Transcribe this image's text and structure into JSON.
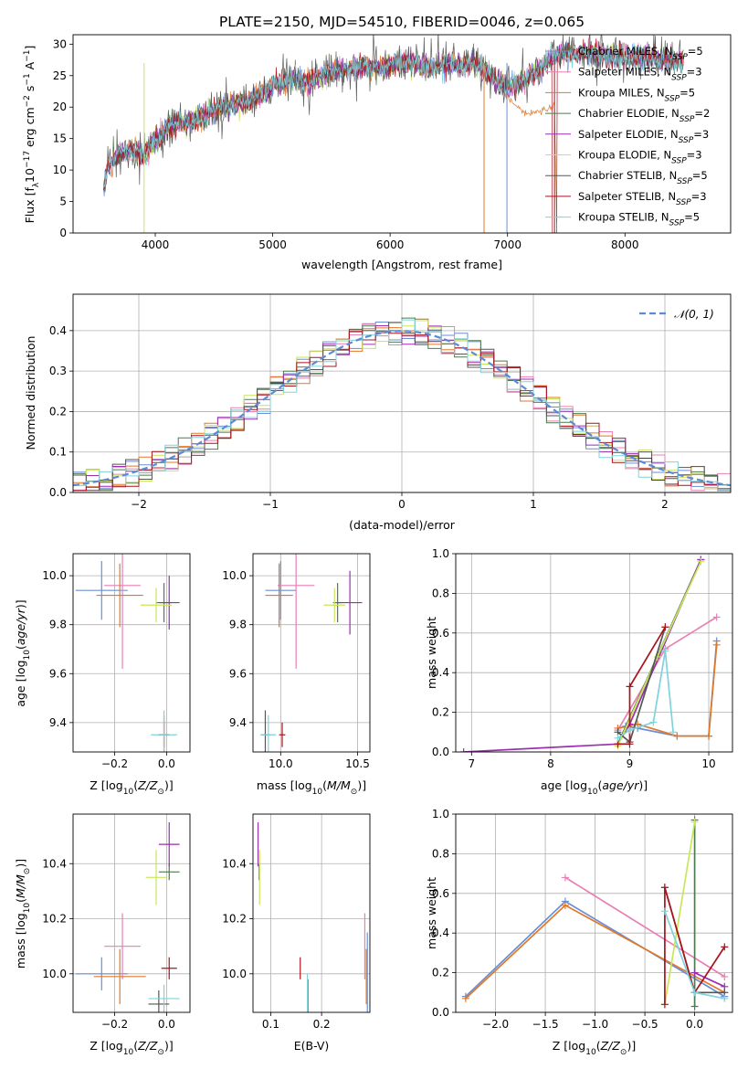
{
  "title": "PLATE=2150, MJD=54510, FIBERID=0046, z=0.065",
  "colors": {
    "chabrier_miles": "#6a8fd6",
    "salpeter_miles": "#e97fb3",
    "kroupa_miles": "#e0782a",
    "chabrier_elodie": "#4d7a4f",
    "salpeter_elodie": "#9a2fb0",
    "kroupa_elodie": "#c8e65a",
    "chabrier_stelib": "#555555",
    "salpeter_stelib": "#a8141c",
    "kroupa_stelib": "#7fd3dc",
    "normal": "#5b8bd6"
  },
  "chart_data": [
    {
      "type": "line",
      "xlabel": "wavelength [Angstrom, rest frame]",
      "ylabel": "Flux [f_λ10^-17 erg cm^-2 s^-1 A^-1]",
      "xlim": [
        3300,
        8900
      ],
      "ylim": [
        0,
        31.5
      ],
      "xticks": [
        "4000",
        "5000",
        "6000",
        "7000",
        "8000"
      ],
      "yticks": [
        "0",
        "5",
        "10",
        "15",
        "20",
        "25",
        "30"
      ],
      "legend_position": "top-right",
      "legend": [
        "Chabrier MILES, N_SSP=5",
        "Salpeter MILES, N_SSP=3",
        "Kroupa MILES, N_SSP=5",
        "Chabrier ELODIE, N_SSP=2",
        "Salpeter ELODIE, N_SSP=3",
        "Kroupa ELODIE, N_SSP=3",
        "Chabrier STELIB, N_SSP=5",
        "Salpeter STELIB, N_SSP=3",
        "Kroupa STELIB, N_SSP=5"
      ],
      "spectrum_continuum": [
        [
          3560,
          7
        ],
        [
          3600,
          11
        ],
        [
          3700,
          12.5
        ],
        [
          3800,
          13
        ],
        [
          3900,
          12.5
        ],
        [
          4000,
          14.5
        ],
        [
          4100,
          16.5
        ],
        [
          4200,
          17.5
        ],
        [
          4300,
          17.5
        ],
        [
          4400,
          18.5
        ],
        [
          4500,
          19.5
        ],
        [
          4600,
          20
        ],
        [
          4700,
          20.5
        ],
        [
          4800,
          21
        ],
        [
          4900,
          22
        ],
        [
          5000,
          23.5
        ],
        [
          5100,
          24
        ],
        [
          5200,
          24.5
        ],
        [
          5300,
          24
        ],
        [
          5400,
          25
        ],
        [
          5500,
          25.5
        ],
        [
          5600,
          26
        ],
        [
          5700,
          26
        ],
        [
          5800,
          26.5
        ],
        [
          5900,
          26
        ],
        [
          6000,
          26.5
        ],
        [
          6100,
          27
        ],
        [
          6200,
          27
        ],
        [
          6300,
          26.5
        ],
        [
          6400,
          26.5
        ],
        [
          6500,
          27
        ],
        [
          6600,
          26.5
        ],
        [
          6700,
          27
        ],
        [
          6800,
          26
        ],
        [
          6900,
          24
        ],
        [
          7000,
          23
        ],
        [
          7100,
          24
        ],
        [
          7200,
          25
        ],
        [
          7300,
          26.5
        ],
        [
          7400,
          28
        ],
        [
          7500,
          28.5
        ],
        [
          7700,
          28.5
        ],
        [
          7900,
          28
        ],
        [
          8100,
          28
        ],
        [
          8300,
          27.5
        ],
        [
          8500,
          27.5
        ]
      ],
      "kroupa_miles_deviation": [
        [
          6850,
          26
        ],
        [
          6950,
          23
        ],
        [
          7050,
          20.5
        ],
        [
          7150,
          19
        ],
        [
          7300,
          19.5
        ],
        [
          7400,
          20.5
        ],
        [
          7420,
          0
        ]
      ]
    },
    {
      "type": "line",
      "xlabel": "(data-model)/error",
      "ylabel": "Normed distribution",
      "xlim": [
        -2.5,
        2.5
      ],
      "ylim": [
        0,
        0.49
      ],
      "xticks": [
        "−2",
        "−1",
        "0",
        "1",
        "2"
      ],
      "yticks": [
        "0.0",
        "0.1",
        "0.2",
        "0.3",
        "0.4"
      ],
      "grid": true,
      "legend_position": "top-right",
      "legend": [
        "𝒩(0, 1)"
      ],
      "normal_curve": {
        "mean": 0,
        "sigma": 1
      },
      "histogram_bin_width": 0.1
    },
    {
      "type": "scatter",
      "xlabel": "Z [log10(Z/Z☉)]",
      "ylabel": "age [log10(age/yr)]",
      "xlim": [
        -0.36,
        0.09
      ],
      "ylim": [
        9.28,
        10.09
      ],
      "xticks": [
        "−0.2",
        "0.0"
      ],
      "yticks": [
        "9.4",
        "9.6",
        "9.8",
        "10.0"
      ],
      "grid": true,
      "points": [
        {
          "model": "chabrier_miles",
          "x": -0.25,
          "xerr": 0.1,
          "y": 9.94,
          "yerr": 0.12
        },
        {
          "model": "salpeter_miles",
          "x": -0.17,
          "xerr": 0.07,
          "y": 9.96,
          "yerr": 0.34
        },
        {
          "model": "kroupa_miles",
          "x": -0.18,
          "xerr": 0.09,
          "y": 9.92,
          "yerr": 0.13
        },
        {
          "model": "chabrier_elodie",
          "x": -0.01,
          "xerr": 0.03,
          "y": 9.89,
          "yerr": 0.08
        },
        {
          "model": "salpeter_elodie",
          "x": 0.01,
          "xerr": 0.04,
          "y": 9.89,
          "yerr": 0.11
        },
        {
          "model": "kroupa_elodie",
          "x": -0.04,
          "xerr": 0.06,
          "y": 9.88,
          "yerr": 0.07
        },
        {
          "model": "chabrier_stelib",
          "x": -0.01,
          "xerr": 0.02,
          "y": 9.35,
          "yerr": 0.08
        },
        {
          "model": "salpeter_stelib",
          "x": -0.01,
          "xerr": 0.02,
          "y": 9.35,
          "yerr": 0.05
        },
        {
          "model": "kroupa_stelib",
          "x": -0.01,
          "xerr": 0.05,
          "y": 9.35,
          "yerr": 0.1
        }
      ]
    },
    {
      "type": "scatter",
      "xlabel": "mass [log10(M/M☉)]",
      "xlim": [
        9.82,
        10.58
      ],
      "ylim": [
        9.28,
        10.09
      ],
      "xticks": [
        "10.0",
        "10.5"
      ],
      "yticks": [
        "9.4",
        "9.6",
        "9.8",
        "10.0"
      ],
      "grid": true,
      "points": [
        {
          "model": "chabrier_miles",
          "x": 10.0,
          "xerr": 0.1,
          "y": 9.94,
          "yerr": 0.12
        },
        {
          "model": "salpeter_miles",
          "x": 10.1,
          "xerr": 0.12,
          "y": 9.96,
          "yerr": 0.34
        },
        {
          "model": "kroupa_miles",
          "x": 9.99,
          "xerr": 0.09,
          "y": 9.92,
          "yerr": 0.13
        },
        {
          "model": "chabrier_elodie",
          "x": 10.37,
          "xerr": 0.03,
          "y": 9.89,
          "yerr": 0.08
        },
        {
          "model": "salpeter_elodie",
          "x": 10.45,
          "xerr": 0.08,
          "y": 9.89,
          "yerr": 0.13
        },
        {
          "model": "kroupa_elodie",
          "x": 10.35,
          "xerr": 0.07,
          "y": 9.88,
          "yerr": 0.07
        },
        {
          "model": "chabrier_stelib",
          "x": 9.9,
          "xerr": 0.03,
          "y": 9.35,
          "yerr": 0.1
        },
        {
          "model": "salpeter_stelib",
          "x": 10.01,
          "xerr": 0.02,
          "y": 9.35,
          "yerr": 0.05
        },
        {
          "model": "kroupa_stelib",
          "x": 9.92,
          "xerr": 0.05,
          "y": 9.35,
          "yerr": 0.08
        }
      ]
    },
    {
      "type": "line",
      "xlabel": "age [log10(age/yr)]",
      "ylabel": "mass weight",
      "xlim": [
        6.8,
        10.3
      ],
      "ylim": [
        0,
        1.0
      ],
      "xticks": [
        "7",
        "8",
        "9",
        "10"
      ],
      "yticks": [
        "0.0",
        "0.2",
        "0.4",
        "0.6",
        "0.8",
        "1.0"
      ],
      "grid": true,
      "series": [
        {
          "model": "chabrier_miles",
          "points": [
            [
              8.95,
              0.13
            ],
            [
              9.1,
              0.12
            ],
            [
              9.6,
              0.08
            ],
            [
              10.0,
              0.08
            ],
            [
              10.1,
              0.56
            ]
          ]
        },
        {
          "model": "salpeter_miles",
          "points": [
            [
              8.85,
              0.11
            ],
            [
              9.45,
              0.52
            ],
            [
              10.1,
              0.68
            ]
          ]
        },
        {
          "model": "kroupa_miles",
          "points": [
            [
              8.85,
              0.12
            ],
            [
              9.1,
              0.14
            ],
            [
              9.6,
              0.08
            ],
            [
              10.0,
              0.08
            ],
            [
              10.1,
              0.54
            ]
          ]
        },
        {
          "model": "chabrier_elodie",
          "points": [
            [
              8.85,
              0.04
            ],
            [
              9.9,
              0.97
            ]
          ]
        },
        {
          "model": "salpeter_elodie",
          "points": [
            [
              6.9,
              0.0
            ],
            [
              8.85,
              0.04
            ],
            [
              9.0,
              0.14
            ],
            [
              9.9,
              0.97
            ]
          ]
        },
        {
          "model": "kroupa_elodie",
          "points": [
            [
              8.85,
              0.03
            ],
            [
              9.35,
              0.48
            ],
            [
              9.9,
              0.96
            ]
          ]
        },
        {
          "model": "chabrier_stelib",
          "points": [
            [
              8.85,
              0.1
            ],
            [
              9.0,
              0.05
            ],
            [
              9.45,
              0.63
            ]
          ]
        },
        {
          "model": "salpeter_stelib",
          "points": [
            [
              8.85,
              0.04
            ],
            [
              9.0,
              0.04
            ],
            [
              9.0,
              0.33
            ],
            [
              9.45,
              0.63
            ]
          ]
        },
        {
          "model": "kroupa_stelib",
          "points": [
            [
              8.85,
              0.07
            ],
            [
              9.0,
              0.11
            ],
            [
              9.3,
              0.15
            ],
            [
              9.45,
              0.51
            ],
            [
              9.55,
              0.1
            ]
          ]
        }
      ]
    },
    {
      "type": "scatter",
      "xlabel": "Z [log10(Z/Z☉)]",
      "ylabel": "mass [log10(M/M☉)]",
      "xlim": [
        -0.36,
        0.09
      ],
      "ylim": [
        9.86,
        10.58
      ],
      "xticks": [
        "−0.2",
        "0.0"
      ],
      "yticks": [
        "10.0",
        "10.2",
        "10.4"
      ],
      "grid": true,
      "points": [
        {
          "model": "chabrier_miles",
          "x": -0.25,
          "xerr": 0.1,
          "y": 10.0,
          "yerr": 0.06
        },
        {
          "model": "salpeter_miles",
          "x": -0.17,
          "xerr": 0.07,
          "y": 10.1,
          "yerr": 0.12
        },
        {
          "model": "kroupa_miles",
          "x": -0.18,
          "xerr": 0.1,
          "y": 9.99,
          "yerr": 0.1
        },
        {
          "model": "chabrier_elodie",
          "x": 0.01,
          "xerr": 0.04,
          "y": 10.37,
          "yerr": 0.03
        },
        {
          "model": "salpeter_elodie",
          "x": 0.01,
          "xerr": 0.04,
          "y": 10.47,
          "yerr": 0.08
        },
        {
          "model": "kroupa_elodie",
          "x": -0.04,
          "xerr": 0.04,
          "y": 10.35,
          "yerr": 0.1
        },
        {
          "model": "chabrier_stelib",
          "x": -0.03,
          "xerr": 0.04,
          "y": 9.89,
          "yerr": 0.05
        },
        {
          "model": "salpeter_stelib",
          "x": 0.01,
          "xerr": 0.03,
          "y": 10.02,
          "yerr": 0.04
        },
        {
          "model": "kroupa_stelib",
          "x": -0.01,
          "xerr": 0.06,
          "y": 9.91,
          "yerr": 0.05
        }
      ]
    },
    {
      "type": "scatter",
      "xlabel": "E(B-V)",
      "xlim": [
        0.065,
        0.295
      ],
      "ylim": [
        9.86,
        10.58
      ],
      "xticks": [
        "0.1",
        "0.2"
      ],
      "yticks": [
        "10.0",
        "10.2",
        "10.4"
      ],
      "grid": true,
      "points": [
        {
          "model": "chabrier_miles",
          "x": 0.29,
          "y": 10.0,
          "yerr": 0.15
        },
        {
          "model": "salpeter_miles",
          "x": 0.285,
          "y": 10.1,
          "yerr": 0.12
        },
        {
          "model": "kroupa_miles",
          "x": 0.288,
          "y": 9.99,
          "yerr": 0.1
        },
        {
          "model": "chabrier_elodie",
          "x": 0.077,
          "y": 10.37,
          "yerr": 0.03
        },
        {
          "model": "salpeter_elodie",
          "x": 0.075,
          "y": 10.47,
          "yerr": 0.08
        },
        {
          "model": "kroupa_elodie",
          "x": 0.078,
          "y": 10.35,
          "yerr": 0.1
        },
        {
          "model": "chabrier_stelib",
          "x": 0.173,
          "y": 9.92,
          "yerr": 0.06
        },
        {
          "model": "salpeter_stelib",
          "x": 0.158,
          "y": 10.02,
          "yerr": 0.04
        },
        {
          "model": "kroupa_stelib",
          "x": 0.172,
          "y": 9.93,
          "yerr": 0.07
        }
      ]
    },
    {
      "type": "line",
      "xlabel": "Z [log10(Z/Z☉)]",
      "ylabel": "mass weight",
      "xlim": [
        -2.4,
        0.38
      ],
      "ylim": [
        0,
        1.0
      ],
      "xticks": [
        "−2.0",
        "−1.5",
        "−1.0",
        "−0.5",
        "0.0"
      ],
      "yticks": [
        "0.0",
        "0.2",
        "0.4",
        "0.6",
        "0.8",
        "1.0"
      ],
      "grid": true,
      "series": [
        {
          "model": "chabrier_miles",
          "points": [
            [
              -2.3,
              0.08
            ],
            [
              -1.3,
              0.56
            ],
            [
              0.3,
              0.08
            ]
          ]
        },
        {
          "model": "salpeter_miles",
          "points": [
            [
              -1.3,
              0.68
            ],
            [
              0.3,
              0.18
            ]
          ]
        },
        {
          "model": "kroupa_miles",
          "points": [
            [
              -2.3,
              0.07
            ],
            [
              -1.3,
              0.54
            ],
            [
              0.3,
              0.1
            ]
          ]
        },
        {
          "model": "chabrier_elodie",
          "points": [
            [
              0.0,
              0.03
            ],
            [
              0.0,
              0.97
            ]
          ]
        },
        {
          "model": "salpeter_elodie",
          "points": [
            [
              0.3,
              0.13
            ],
            [
              0.0,
              0.2
            ]
          ]
        },
        {
          "model": "kroupa_elodie",
          "points": [
            [
              -0.3,
              0.04
            ],
            [
              0.0,
              0.96
            ]
          ]
        },
        {
          "model": "chabrier_stelib",
          "points": [
            [
              -0.3,
              0.63
            ],
            [
              0.0,
              0.1
            ],
            [
              0.3,
              0.1
            ]
          ]
        },
        {
          "model": "salpeter_stelib",
          "points": [
            [
              -0.3,
              0.04
            ],
            [
              -0.3,
              0.63
            ],
            [
              0.0,
              0.1
            ],
            [
              0.3,
              0.33
            ]
          ]
        },
        {
          "model": "kroupa_stelib",
          "points": [
            [
              -0.3,
              0.51
            ],
            [
              0.0,
              0.1
            ],
            [
              0.3,
              0.07
            ]
          ]
        }
      ]
    }
  ]
}
